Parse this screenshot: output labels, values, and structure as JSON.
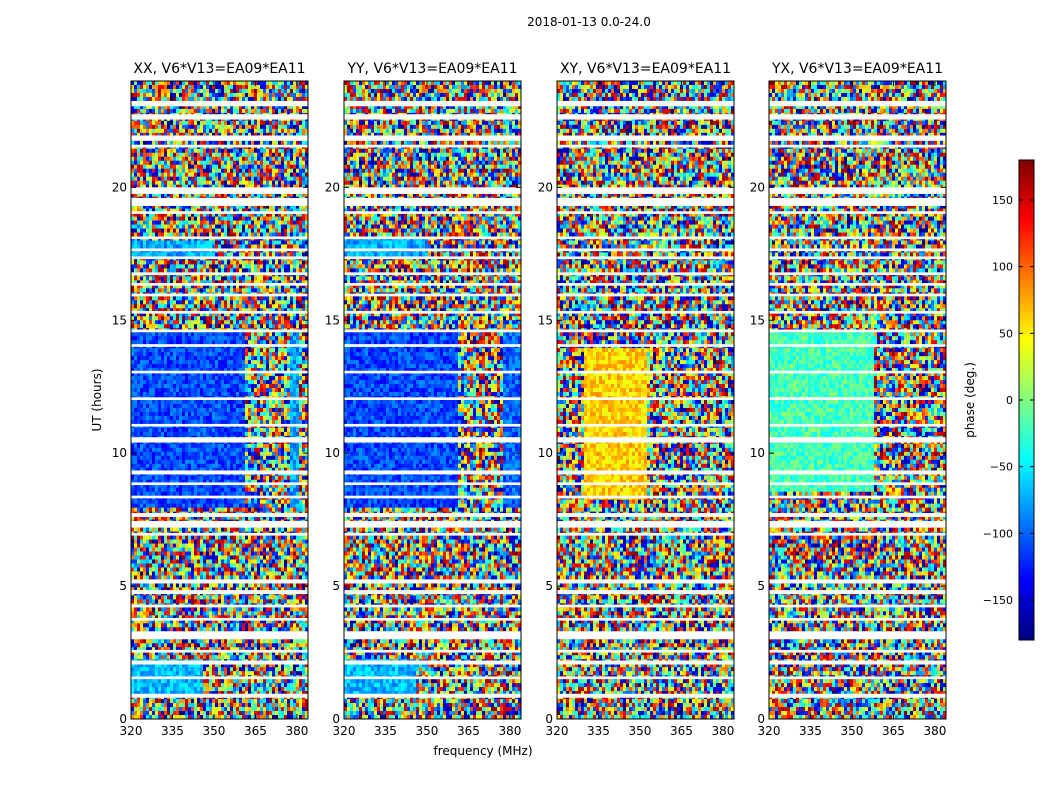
{
  "figure": {
    "suptitle": "2018-01-13 0.0-24.0",
    "xlabel": "frequency (MHz)",
    "ylabel": "UT (hours)"
  },
  "chart_data": {
    "type": "heatmap",
    "suptitle": "2018-01-13 0.0-24.0",
    "xlabel": "frequency (MHz)",
    "ylabel": "UT (hours)",
    "xlim": [
      320,
      384
    ],
    "ylim": [
      0,
      24
    ],
    "xticks": [
      320,
      335,
      350,
      365,
      380
    ],
    "yticks": [
      0,
      5,
      10,
      15,
      20
    ],
    "flagged_rows_ut": [
      [
        23.05,
        23.25
      ],
      [
        22.55,
        22.75
      ],
      [
        21.75,
        21.95
      ],
      [
        21.5,
        21.6
      ],
      [
        19.75,
        20.0
      ],
      [
        19.3,
        19.6
      ],
      [
        19.0,
        19.1
      ],
      [
        18.05,
        18.15
      ],
      [
        17.6,
        17.7
      ],
      [
        17.3,
        17.4
      ],
      [
        16.7,
        16.8
      ],
      [
        16.3,
        16.4
      ],
      [
        15.9,
        16.0
      ],
      [
        15.25,
        15.35
      ],
      [
        14.55,
        14.65
      ],
      [
        14.0,
        14.1
      ],
      [
        13.0,
        13.1
      ],
      [
        12.0,
        12.1
      ],
      [
        11.0,
        11.1
      ],
      [
        10.4,
        10.6
      ],
      [
        9.2,
        9.35
      ],
      [
        8.8,
        8.9
      ],
      [
        8.3,
        8.4
      ],
      [
        7.6,
        7.75
      ],
      [
        7.2,
        7.45
      ],
      [
        6.9,
        7.0
      ],
      [
        5.1,
        5.25
      ],
      [
        4.7,
        4.85
      ],
      [
        4.2,
        4.3
      ],
      [
        3.7,
        3.8
      ],
      [
        3.0,
        3.3
      ],
      [
        2.5,
        2.6
      ],
      [
        2.05,
        2.2
      ],
      [
        1.5,
        1.6
      ],
      [
        0.8,
        0.95
      ]
    ],
    "panels": [
      {
        "title": "XX, V6*V13=EA09*EA11",
        "coherent_phase_deg": -110,
        "coherent_regions": [
          {
            "ut": [
              8.0,
              14.6
            ],
            "freq": [
              320,
              361
            ],
            "phase_deg": -110
          },
          {
            "ut": [
              8.0,
              14.6
            ],
            "freq": [
              378,
              381
            ],
            "phase_deg": -80
          },
          {
            "ut": [
              17.4,
              18.0
            ],
            "freq": [
              320,
              350
            ],
            "phase_deg": -75
          },
          {
            "ut": [
              0.9,
              2.3
            ],
            "freq": [
              320,
              346
            ],
            "phase_deg": -70
          }
        ]
      },
      {
        "title": "YY, V6*V13=EA09*EA11",
        "coherent_phase_deg": -110,
        "coherent_regions": [
          {
            "ut": [
              8.0,
              14.6
            ],
            "freq": [
              320,
              361
            ],
            "phase_deg": -110
          },
          {
            "ut": [
              8.0,
              14.6
            ],
            "freq": [
              378,
              384
            ],
            "phase_deg": -100
          },
          {
            "ut": [
              17.4,
              18.2
            ],
            "freq": [
              320,
              350
            ],
            "phase_deg": -75
          },
          {
            "ut": [
              0.9,
              2.3
            ],
            "freq": [
              320,
              346
            ],
            "phase_deg": -70
          }
        ]
      },
      {
        "title": "XY, V6*V13=EA09*EA11",
        "coherent_phase_deg": 60,
        "coherent_regions": [
          {
            "ut": [
              8.3,
              14.0
            ],
            "freq": [
              330,
              353
            ],
            "phase_deg": 60
          }
        ]
      },
      {
        "title": "YX, V6*V13=EA09*EA11",
        "coherent_phase_deg": -20,
        "coherent_regions": [
          {
            "ut": [
              8.5,
              14.5
            ],
            "freq": [
              320,
              358
            ],
            "phase_deg": -20
          }
        ]
      }
    ],
    "colorbar": {
      "label": "phase (deg.)",
      "range": [
        -180,
        180
      ],
      "ticks": [
        150,
        100,
        50,
        0,
        -50,
        -100,
        -150
      ],
      "tick_labels": [
        "150",
        "100",
        "50",
        "0",
        "−50",
        "−100",
        "−150"
      ],
      "colormap": "jet"
    }
  }
}
